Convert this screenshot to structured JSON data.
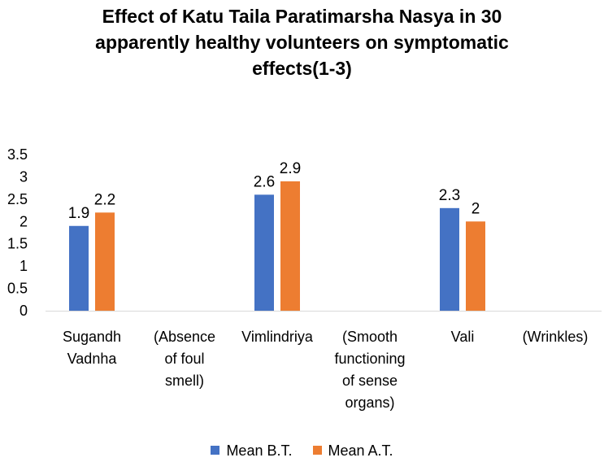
{
  "chart_data": {
    "type": "bar",
    "title": "Effect of Katu Taila Paratimarsha Nasya in 30 apparently healthy volunteers on symptomatic effects(1-3)",
    "title_lines": [
      "Effect of Katu Taila Paratimarsha Nasya in 30",
      "apparently healthy volunteers on symptomatic",
      "effects(1-3)"
    ],
    "categories": [
      [
        "Sugandh",
        "Vadnha"
      ],
      [
        "(Absence",
        "of foul",
        "smell)"
      ],
      [
        "Vimlindriya"
      ],
      [
        "(Smooth",
        "functioning",
        "of sense",
        "organs)"
      ],
      [
        "Vali"
      ],
      [
        "(Wrinkles)"
      ]
    ],
    "series": [
      {
        "name": "Mean B.T.",
        "color": "#4472C4",
        "values": [
          1.9,
          null,
          2.6,
          null,
          2.3,
          null
        ],
        "labels": [
          "1.9",
          "",
          "2.6",
          "",
          "2.3",
          ""
        ]
      },
      {
        "name": "Mean A.T.",
        "color": "#ED7D31",
        "values": [
          2.2,
          null,
          2.9,
          null,
          2.0,
          null
        ],
        "labels": [
          "2.2",
          "",
          "2.9",
          "",
          "2",
          ""
        ]
      }
    ],
    "yticks": [
      "0",
      "0.5",
      "1",
      "1.5",
      "2",
      "2.5",
      "3",
      "3.5"
    ],
    "ylim": [
      0,
      3.5
    ],
    "grid": false,
    "legend_position": "bottom",
    "xlabel": "",
    "ylabel": ""
  }
}
